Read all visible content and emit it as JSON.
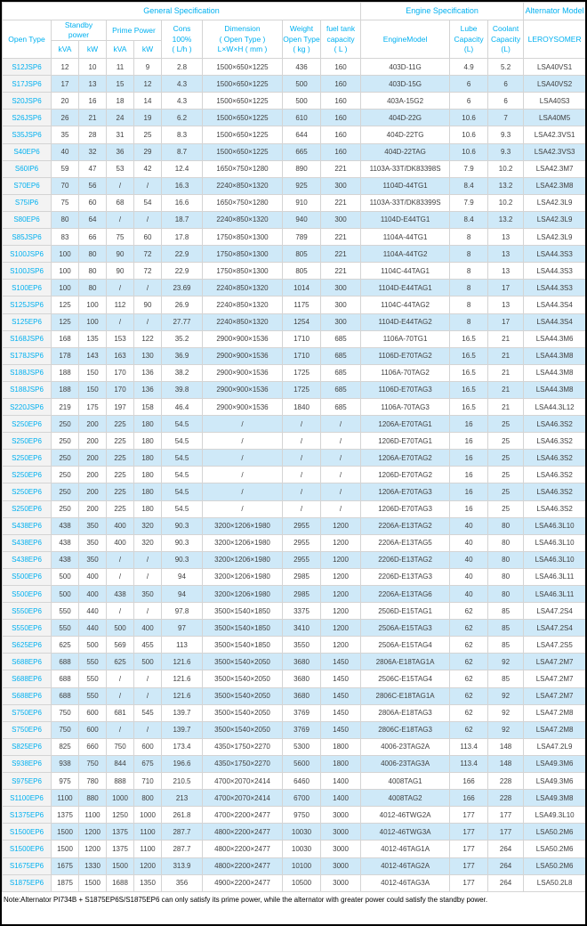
{
  "table": {
    "groups": {
      "general": "General Specification",
      "engine": "Engine Specification",
      "alternator": "Alternator Model"
    },
    "headers": {
      "open_type": "Open Type",
      "standby": "Standby\npower",
      "prime": "Prime Power",
      "kva": "kVA",
      "kw": "kW",
      "cons": "Cons\n100%\n( L/h )",
      "dimension": "Dimension\n( Open Type )\nL×W×H ( mm )",
      "weight": "Weight\nOpen Type\n( kg )",
      "fuel": "fuel tank\ncapacity\n( L )",
      "engine_model": "EngineModel",
      "lube": "Lube\nCapacity\n(L)",
      "coolant": "Coolant\nCapacity\n(L)",
      "leroysomer": "LEROYSOMER"
    },
    "rows": [
      [
        "S12JSP6",
        "12",
        "10",
        "11",
        "9",
        "2.8",
        "1500×650×1225",
        "436",
        "160",
        "403D-11G",
        "4.9",
        "5.2",
        "LSA40VS1"
      ],
      [
        "S17JSP6",
        "17",
        "13",
        "15",
        "12",
        "4.3",
        "1500×650×1225",
        "500",
        "160",
        "403D-15G",
        "6",
        "6",
        "LSA40VS2"
      ],
      [
        "S20JSP6",
        "20",
        "16",
        "18",
        "14",
        "4.3",
        "1500×650×1225",
        "500",
        "160",
        "403A-15G2",
        "6",
        "6",
        "LSA40S3"
      ],
      [
        "S26JSP6",
        "26",
        "21",
        "24",
        "19",
        "6.2",
        "1500×650×1225",
        "610",
        "160",
        "404D-22G",
        "10.6",
        "7",
        "LSA40M5"
      ],
      [
        "S35JSP6",
        "35",
        "28",
        "31",
        "25",
        "8.3",
        "1500×650×1225",
        "644",
        "160",
        "404D-22TG",
        "10.6",
        "9.3",
        "LSA42.3VS1"
      ],
      [
        "S40EP6",
        "40",
        "32",
        "36",
        "29",
        "8.7",
        "1500×650×1225",
        "665",
        "160",
        "404D-22TAG",
        "10.6",
        "9.3",
        "LSA42.3VS3"
      ],
      [
        "S60IP6",
        "59",
        "47",
        "53",
        "42",
        "12.4",
        "1650×750×1280",
        "890",
        "221",
        "1103A-33T/DK83398S",
        "7.9",
        "10.2",
        "LSA42.3M7"
      ],
      [
        "S70EP6",
        "70",
        "56",
        "/",
        "/",
        "16.3",
        "2240×850×1320",
        "925",
        "300",
        "1104D-44TG1",
        "8.4",
        "13.2",
        "LSA42.3M8"
      ],
      [
        "S75IP6",
        "75",
        "60",
        "68",
        "54",
        "16.6",
        "1650×750×1280",
        "910",
        "221",
        "1103A-33T/DK83399S",
        "7.9",
        "10.2",
        "LSA42.3L9"
      ],
      [
        "S80EP6",
        "80",
        "64",
        "/",
        "/",
        "18.7",
        "2240×850×1320",
        "940",
        "300",
        "1104D-E44TG1",
        "8.4",
        "13.2",
        "LSA42.3L9"
      ],
      [
        "S85JSP6",
        "83",
        "66",
        "75",
        "60",
        "17.8",
        "1750×850×1300",
        "789",
        "221",
        "1104A-44TG1",
        "8",
        "13",
        "LSA42.3L9"
      ],
      [
        "S100JSP6",
        "100",
        "80",
        "90",
        "72",
        "22.9",
        "1750×850×1300",
        "805",
        "221",
        "1104A-44TG2",
        "8",
        "13",
        "LSA44.3S3"
      ],
      [
        "S100JSP6",
        "100",
        "80",
        "90",
        "72",
        "22.9",
        "1750×850×1300",
        "805",
        "221",
        "1104C-44TAG1",
        "8",
        "13",
        "LSA44.3S3"
      ],
      [
        "S100EP6",
        "100",
        "80",
        "/",
        "/",
        "23.69",
        "2240×850×1320",
        "1014",
        "300",
        "1104D-E44TAG1",
        "8",
        "17",
        "LSA44.3S3"
      ],
      [
        "S125JSP6",
        "125",
        "100",
        "112",
        "90",
        "26.9",
        "2240×850×1320",
        "1175",
        "300",
        "1104C-44TAG2",
        "8",
        "13",
        "LSA44.3S4"
      ],
      [
        "S125EP6",
        "125",
        "100",
        "/",
        "/",
        "27.77",
        "2240×850×1320",
        "1254",
        "300",
        "1104D-E44TAG2",
        "8",
        "17",
        "LSA44.3S4"
      ],
      [
        "S168JSP6",
        "168",
        "135",
        "153",
        "122",
        "35.2",
        "2900×900×1536",
        "1710",
        "685",
        "1106A-70TG1",
        "16.5",
        "21",
        "LSA44.3M6"
      ],
      [
        "S178JSP6",
        "178",
        "143",
        "163",
        "130",
        "36.9",
        "2900×900×1536",
        "1710",
        "685",
        "1106D-E70TAG2",
        "16.5",
        "21",
        "LSA44.3M8"
      ],
      [
        "S188JSP6",
        "188",
        "150",
        "170",
        "136",
        "38.2",
        "2900×900×1536",
        "1725",
        "685",
        "1106A-70TAG2",
        "16.5",
        "21",
        "LSA44.3M8"
      ],
      [
        "S188JSP6",
        "188",
        "150",
        "170",
        "136",
        "39.8",
        "2900×900×1536",
        "1725",
        "685",
        "1106D-E70TAG3",
        "16.5",
        "21",
        "LSA44.3M8"
      ],
      [
        "S220JSP6",
        "219",
        "175",
        "197",
        "158",
        "46.4",
        "2900×900×1536",
        "1840",
        "685",
        "1106A-70TAG3",
        "16.5",
        "21",
        "LSA44.3L12"
      ],
      [
        "S250EP6",
        "250",
        "200",
        "225",
        "180",
        "54.5",
        "/",
        "/",
        "/",
        "1206A-E70TAG1",
        "16",
        "25",
        "LSA46.3S2"
      ],
      [
        "S250EP6",
        "250",
        "200",
        "225",
        "180",
        "54.5",
        "/",
        "/",
        "/",
        "1206D-E70TAG1",
        "16",
        "25",
        "LSA46.3S2"
      ],
      [
        "S250EP6",
        "250",
        "200",
        "225",
        "180",
        "54.5",
        "/",
        "/",
        "/",
        "1206A-E70TAG2",
        "16",
        "25",
        "LSA46.3S2"
      ],
      [
        "S250EP6",
        "250",
        "200",
        "225",
        "180",
        "54.5",
        "/",
        "/",
        "/",
        "1206D-E70TAG2",
        "16",
        "25",
        "LSA46.3S2"
      ],
      [
        "S250EP6",
        "250",
        "200",
        "225",
        "180",
        "54.5",
        "/",
        "/",
        "/",
        "1206A-E70TAG3",
        "16",
        "25",
        "LSA46.3S2"
      ],
      [
        "S250EP6",
        "250",
        "200",
        "225",
        "180",
        "54.5",
        "/",
        "/",
        "/",
        "1206D-E70TAG3",
        "16",
        "25",
        "LSA46.3S2"
      ],
      [
        "S438EP6",
        "438",
        "350",
        "400",
        "320",
        "90.3",
        "3200×1206×1980",
        "2955",
        "1200",
        "2206A-E13TAG2",
        "40",
        "80",
        "LSA46.3L10"
      ],
      [
        "S438EP6",
        "438",
        "350",
        "400",
        "320",
        "90.3",
        "3200×1206×1980",
        "2955",
        "1200",
        "2206A-E13TAG5",
        "40",
        "80",
        "LSA46.3L10"
      ],
      [
        "S438EP6",
        "438",
        "350",
        "/",
        "/",
        "90.3",
        "3200×1206×1980",
        "2955",
        "1200",
        "2206D-E13TAG2",
        "40",
        "80",
        "LSA46.3L10"
      ],
      [
        "S500EP6",
        "500",
        "400",
        "/",
        "/",
        "94",
        "3200×1206×1980",
        "2985",
        "1200",
        "2206D-E13TAG3",
        "40",
        "80",
        "LSA46.3L11"
      ],
      [
        "S500EP6",
        "500",
        "400",
        "438",
        "350",
        "94",
        "3200×1206×1980",
        "2985",
        "1200",
        "2206A-E13TAG6",
        "40",
        "80",
        "LSA46.3L11"
      ],
      [
        "S550EP6",
        "550",
        "440",
        "/",
        "/",
        "97.8",
        "3500×1540×1850",
        "3375",
        "1200",
        "2506D-E15TAG1",
        "62",
        "85",
        "LSA47.2S4"
      ],
      [
        "S550EP6",
        "550",
        "440",
        "500",
        "400",
        "97",
        "3500×1540×1850",
        "3410",
        "1200",
        "2506A-E15TAG3",
        "62",
        "85",
        "LSA47.2S4"
      ],
      [
        "S625EP6",
        "625",
        "500",
        "569",
        "455",
        "113",
        "3500×1540×1850",
        "3550",
        "1200",
        "2506A-E15TAG4",
        "62",
        "85",
        "LSA47.2S5"
      ],
      [
        "S688EP6",
        "688",
        "550",
        "625",
        "500",
        "121.6",
        "3500×1540×2050",
        "3680",
        "1450",
        "2806A-E18TAG1A",
        "62",
        "92",
        "LSA47.2M7"
      ],
      [
        "S688EP6",
        "688",
        "550",
        "/",
        "/",
        "121.6",
        "3500×1540×2050",
        "3680",
        "1450",
        "2506C-E15TAG4",
        "62",
        "85",
        "LSA47.2M7"
      ],
      [
        "S688EP6",
        "688",
        "550",
        "/",
        "/",
        "121.6",
        "3500×1540×2050",
        "3680",
        "1450",
        "2806C-E18TAG1A",
        "62",
        "92",
        "LSA47.2M7"
      ],
      [
        "S750EP6",
        "750",
        "600",
        "681",
        "545",
        "139.7",
        "3500×1540×2050",
        "3769",
        "1450",
        "2806A-E18TAG3",
        "62",
        "92",
        "LSA47.2M8"
      ],
      [
        "S750EP6",
        "750",
        "600",
        "/",
        "/",
        "139.7",
        "3500×1540×2050",
        "3769",
        "1450",
        "2806C-E18TAG3",
        "62",
        "92",
        "LSA47.2M8"
      ],
      [
        "S825EP6",
        "825",
        "660",
        "750",
        "600",
        "173.4",
        "4350×1750×2270",
        "5300",
        "1800",
        "4006-23TAG2A",
        "113.4",
        "148",
        "LSA47.2L9"
      ],
      [
        "S938EP6",
        "938",
        "750",
        "844",
        "675",
        "196.6",
        "4350×1750×2270",
        "5600",
        "1800",
        "4006-23TAG3A",
        "113.4",
        "148",
        "LSA49.3M6"
      ],
      [
        "S975EP6",
        "975",
        "780",
        "888",
        "710",
        "210.5",
        "4700×2070×2414",
        "6460",
        "1400",
        "4008TAG1",
        "166",
        "228",
        "LSA49.3M6"
      ],
      [
        "S1100EP6",
        "1100",
        "880",
        "1000",
        "800",
        "213",
        "4700×2070×2414",
        "6700",
        "1400",
        "4008TAG2",
        "166",
        "228",
        "LSA49.3M8"
      ],
      [
        "S1375EP6",
        "1375",
        "1100",
        "1250",
        "1000",
        "261.8",
        "4700×2200×2477",
        "9750",
        "3000",
        "4012-46TWG2A",
        "177",
        "177",
        "LSA49.3L10"
      ],
      [
        "S1500EP6",
        "1500",
        "1200",
        "1375",
        "1100",
        "287.7",
        "4800×2200×2477",
        "10030",
        "3000",
        "4012-46TWG3A",
        "177",
        "177",
        "LSA50.2M6"
      ],
      [
        "S1500EP6",
        "1500",
        "1200",
        "1375",
        "1100",
        "287.7",
        "4800×2200×2477",
        "10030",
        "3000",
        "4012-46TAG1A",
        "177",
        "264",
        "LSA50.2M6"
      ],
      [
        "S1675EP6",
        "1675",
        "1330",
        "1500",
        "1200",
        "313.9",
        "4800×2200×2477",
        "10100",
        "3000",
        "4012-46TAG2A",
        "177",
        "264",
        "LSA50.2M6"
      ],
      [
        "S1875EP6",
        "1875",
        "1500",
        "1688",
        "1350",
        "356",
        "4900×2200×2477",
        "10500",
        "3000",
        "4012-46TAG3A",
        "177",
        "264",
        "LSA50.2L8"
      ]
    ],
    "note": "Note:Alternator PI734B + S1875EP6S/S1875EP6 can only satisfy its prime power, while the alternator with greater power could satisfy the standby power."
  },
  "colors": {
    "accent_text": "#00b0f0",
    "row_stripe": "#cfe9f8",
    "body_text": "#404040",
    "grid_border": "#d4d4d4",
    "model_column_bg": "#f3f3f3",
    "outer_border": "#000000"
  }
}
